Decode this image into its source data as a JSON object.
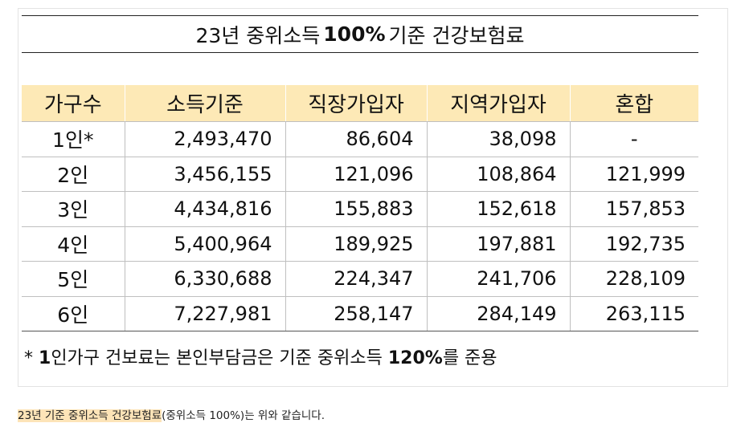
{
  "title": {
    "prefix": "23년 중위소득 ",
    "bold": "100%",
    "suffix": " 기준 건강보험료"
  },
  "table": {
    "headers": [
      "가구수",
      "소득기준",
      "직장가입자",
      "지역가입자",
      "혼합"
    ],
    "rows": [
      [
        "1인*",
        "2,493,470",
        "86,604",
        "38,098",
        "-"
      ],
      [
        "2인",
        "3,456,155",
        "121,096",
        "108,864",
        "121,999"
      ],
      [
        "3인",
        "4,434,816",
        "155,883",
        "152,618",
        "157,853"
      ],
      [
        "4인",
        "5,400,964",
        "189,925",
        "197,881",
        "192,735"
      ],
      [
        "5인",
        "6,330,688",
        "224,347",
        "241,706",
        "228,109"
      ],
      [
        "6인",
        "7,227,981",
        "258,147",
        "284,149",
        "263,115"
      ]
    ]
  },
  "footnote": {
    "star": "* ",
    "lead_bold": "1",
    "middle": "인가구 건보료는 본인부담금은 기준 중위소득 ",
    "pct_bold": "120%",
    "tail": "를 준용"
  },
  "caption": {
    "highlight": "23년 기준 중위소득 건강보험료",
    "rest": "(중위소득 100%)는 위와 같습니다."
  },
  "colors": {
    "header_bg": "#fde9b6",
    "caption_highlight": "#fde4b8"
  }
}
